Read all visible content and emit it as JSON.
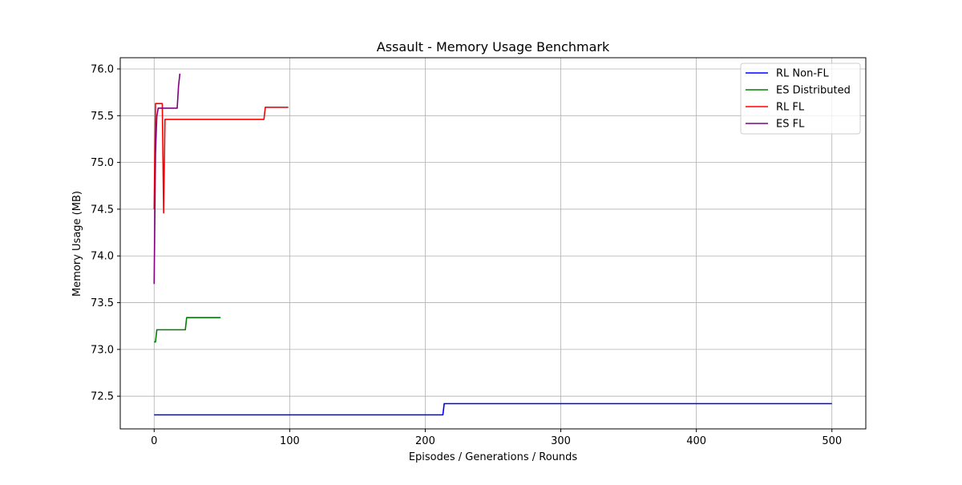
{
  "chart_data": {
    "type": "line",
    "title": "Assault - Memory Usage Benchmark",
    "xlabel": "Episodes / Generations / Rounds",
    "ylabel": "Memory Usage (MB)",
    "xlim": [
      -25,
      525
    ],
    "ylim": [
      72.15,
      76.12
    ],
    "xticks": [
      0,
      100,
      200,
      300,
      400,
      500
    ],
    "yticks": [
      72.5,
      73.0,
      73.5,
      74.0,
      74.5,
      75.0,
      75.5,
      76.0
    ],
    "xtick_labels": [
      "0",
      "100",
      "200",
      "300",
      "400",
      "500"
    ],
    "ytick_labels": [
      "72.5",
      "73.0",
      "73.5",
      "74.0",
      "74.5",
      "75.0",
      "75.5",
      "76.0"
    ],
    "grid": true,
    "legend_position": "top-right",
    "series": [
      {
        "name": "RL Non-FL",
        "color": "#0000ff",
        "x": [
          0,
          213,
          214,
          500
        ],
        "y": [
          72.3,
          72.3,
          72.42,
          72.42
        ]
      },
      {
        "name": "ES Distributed",
        "color": "#008000",
        "x": [
          0,
          1,
          2,
          23,
          24,
          49
        ],
        "y": [
          73.08,
          73.08,
          73.21,
          73.21,
          73.34,
          73.34
        ]
      },
      {
        "name": "RL FL",
        "color": "#ff0000",
        "x": [
          0,
          1,
          6,
          7,
          8,
          81,
          82,
          99
        ],
        "y": [
          74.5,
          75.63,
          75.63,
          74.46,
          75.46,
          75.46,
          75.59,
          75.59
        ]
      },
      {
        "name": "ES FL",
        "color": "#800080",
        "x": [
          0,
          1,
          2,
          3,
          17,
          18,
          19
        ],
        "y": [
          73.7,
          75.1,
          75.5,
          75.58,
          75.58,
          75.82,
          75.95
        ]
      }
    ]
  }
}
